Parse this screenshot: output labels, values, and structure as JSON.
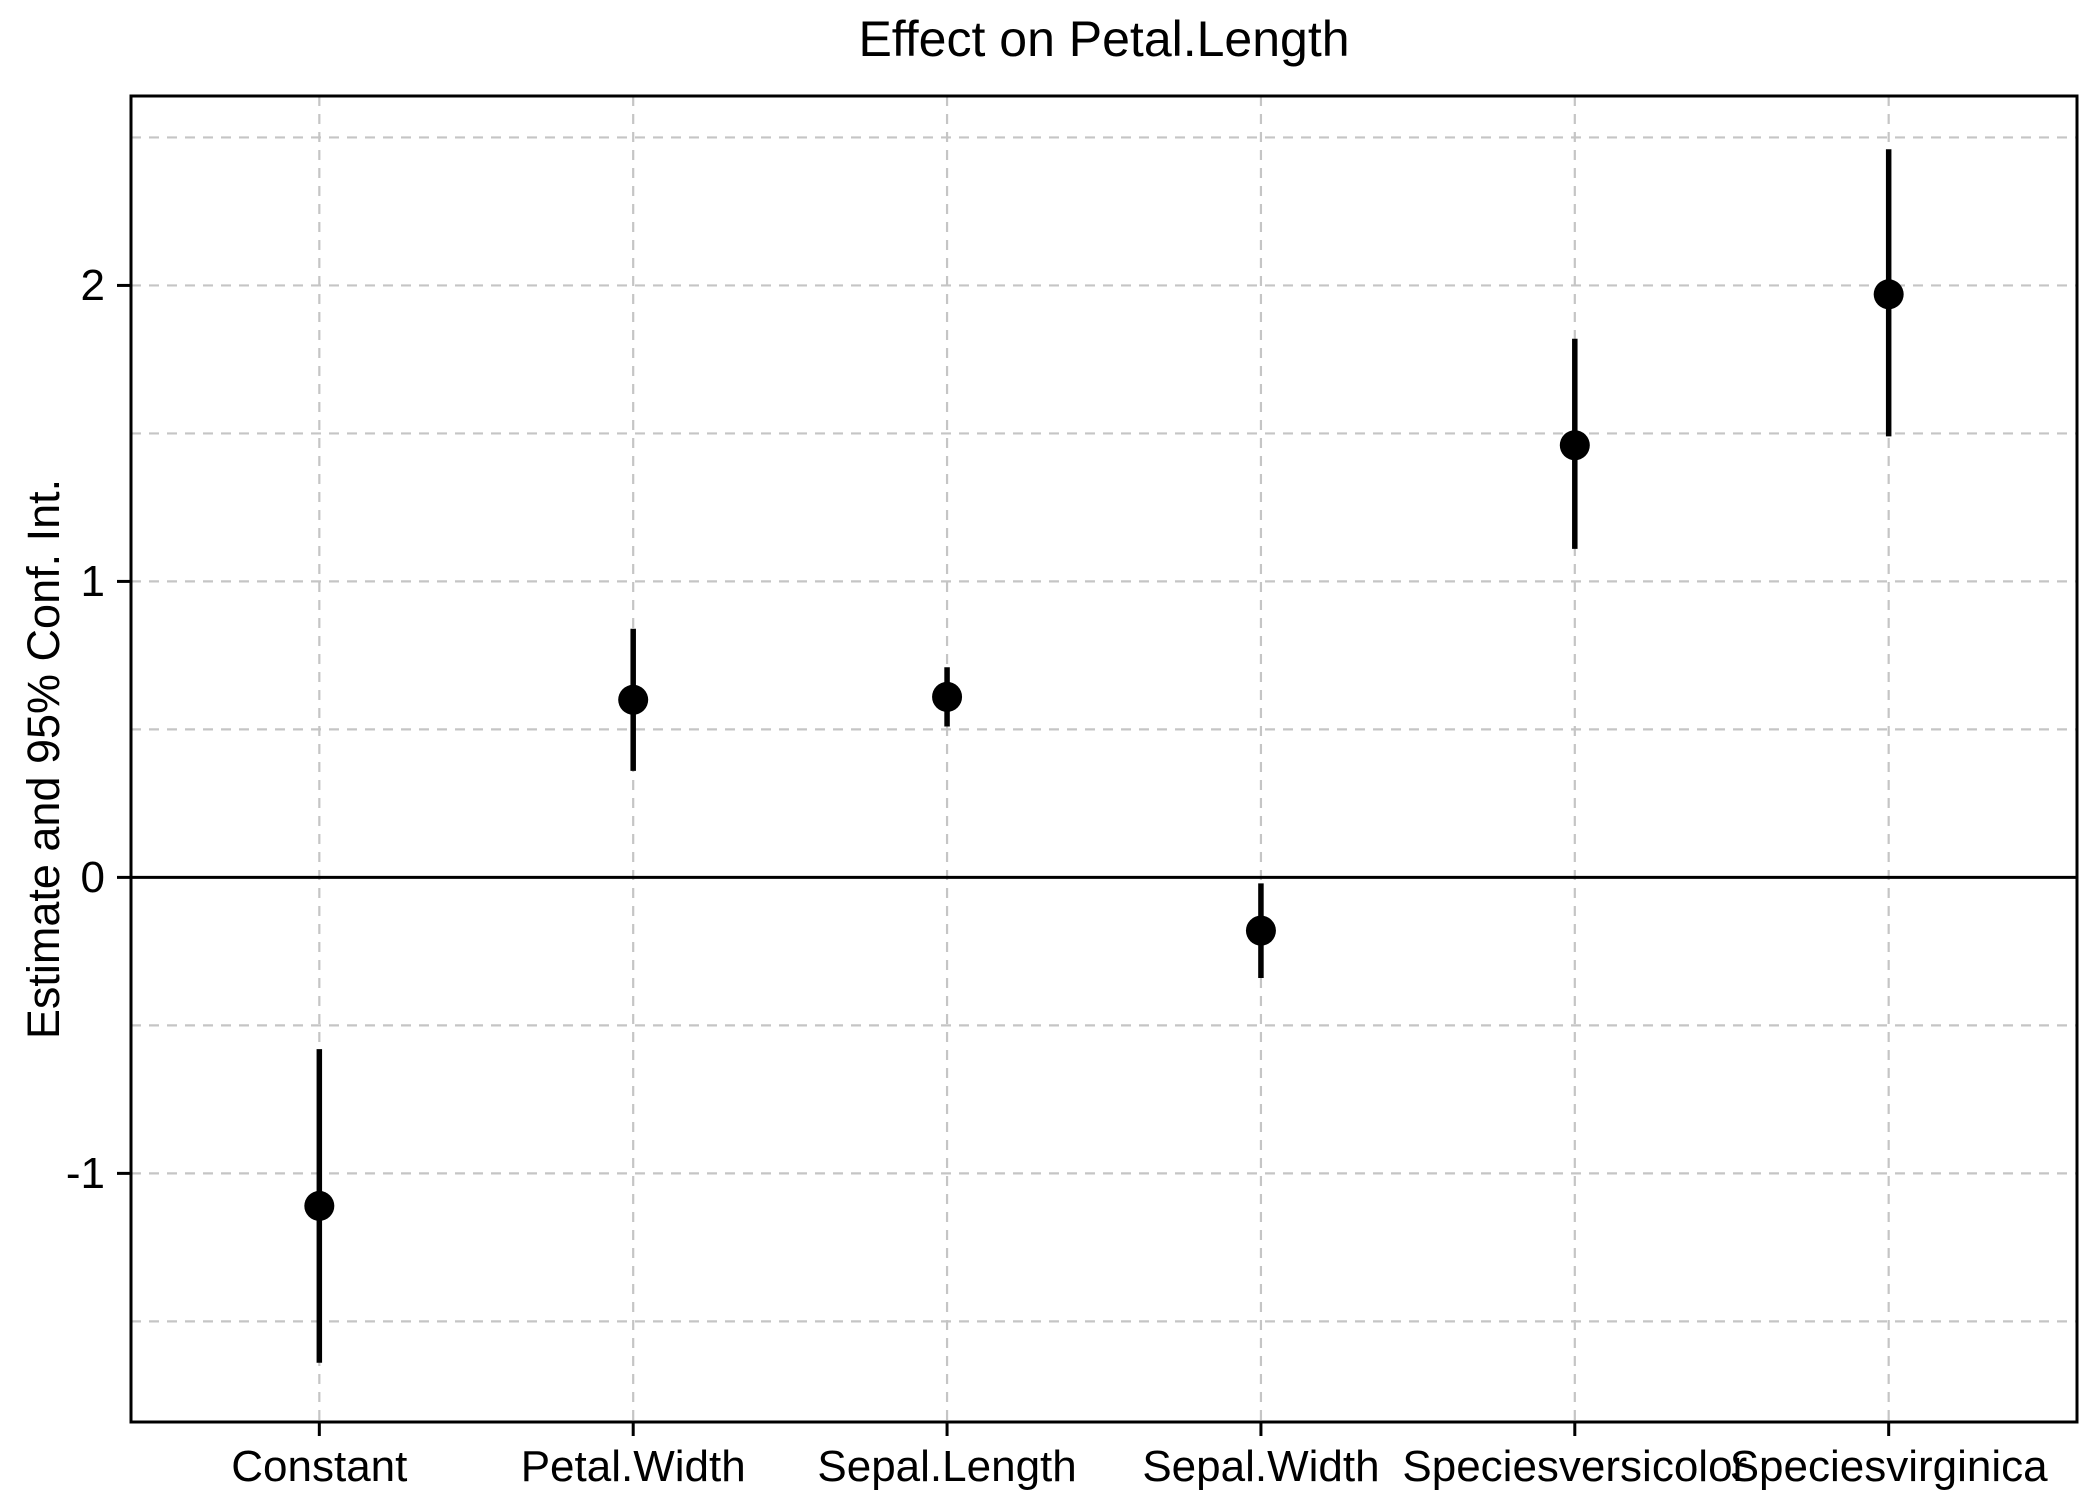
{
  "chart_data": {
    "type": "scatter",
    "subtype": "coefficient-plot-with-error-bars",
    "title": "Effect on Petal.Length",
    "xlabel": "",
    "ylabel": "Estimate and 95% Conf. Int.",
    "categories": [
      "Constant",
      "Petal.Width",
      "Sepal.Length",
      "Sepal.Width",
      "Speciesversicolor",
      "Speciesvirginica"
    ],
    "series": [
      {
        "name": "Estimate",
        "values": [
          -1.11,
          0.6,
          0.61,
          -0.18,
          1.46,
          1.97
        ]
      }
    ],
    "ci_lower": [
      -1.64,
      0.36,
      0.51,
      -0.34,
      1.11,
      1.49
    ],
    "ci_upper": [
      -0.58,
      0.84,
      0.71,
      -0.02,
      1.82,
      2.46
    ],
    "ylim": [
      -1.84,
      2.64
    ],
    "y_ticks": [
      2,
      1,
      0,
      -1
    ],
    "gridline_values": [
      2.5,
      2,
      1.5,
      1,
      0.5,
      -0.5,
      -1,
      -1.5
    ],
    "zero_line": 0,
    "grid": "dashed-gray-horizontal-and-vertical",
    "legend_position": "none",
    "colors": {
      "point": "#000000",
      "errorbar": "#000000",
      "zeroline": "#000000",
      "frame": "#000000",
      "tick": "#000000",
      "text": "#000000",
      "gridline": "#c5c5c5",
      "background": "#ffffff"
    }
  }
}
